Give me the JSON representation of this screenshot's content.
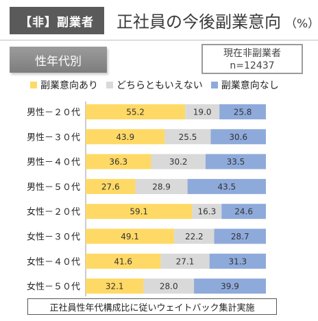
{
  "header": {
    "tag_label": "【非】副業者",
    "title": "正社員の今後副業意向",
    "title_unit": "（%）"
  },
  "section_label": "性年代別",
  "sample_badge": {
    "line1": "現在非副業者",
    "line2": "n=12437"
  },
  "footnote": "正社員性年代構成比に従いウェイトバック集計実施",
  "chart_data": {
    "type": "bar",
    "orientation": "horizontal",
    "stacked": true,
    "categories": [
      "男性－２０代",
      "男性－３０代",
      "男性－４０代",
      "男性－５０代",
      "女性－２０代",
      "女性－３０代",
      "女性－４０代",
      "女性－５０代"
    ],
    "series": [
      {
        "name": "副業意向あり",
        "color": "#ffd966",
        "values": [
          55.2,
          43.9,
          36.3,
          27.6,
          59.1,
          49.1,
          41.6,
          32.1
        ]
      },
      {
        "name": "どちらともいえない",
        "color": "#d9d9d9",
        "values": [
          19.0,
          25.5,
          30.2,
          28.9,
          16.3,
          22.2,
          27.1,
          28.0
        ]
      },
      {
        "name": "副業意向なし",
        "color": "#8eaadb",
        "values": [
          25.8,
          30.6,
          33.5,
          43.5,
          24.6,
          28.7,
          31.3,
          39.9
        ]
      }
    ],
    "xlim": [
      0,
      100
    ],
    "legend_position": "top"
  }
}
